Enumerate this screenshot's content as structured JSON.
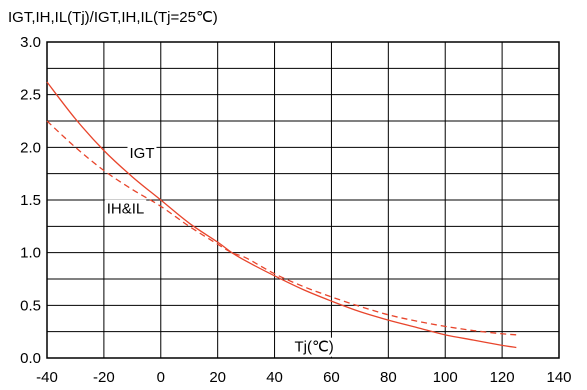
{
  "chart_data": {
    "type": "line",
    "title": "",
    "ylabel": "IGT,IH,IL(Tj)/IGT,IH,IL(Tj=25℃)",
    "xlabel": "",
    "xlim": [
      -40,
      140
    ],
    "ylim": [
      0.0,
      3.0
    ],
    "x_ticks": [
      "-40",
      "-20",
      "0",
      "20",
      "40",
      "60",
      "80",
      "100",
      "120",
      "140"
    ],
    "y_ticks": [
      "0.0",
      "0.5",
      "1.0",
      "1.5",
      "2.0",
      "2.5",
      "3.0"
    ],
    "grid": true,
    "line_color": "#e8452c",
    "series": [
      {
        "name": "IGT",
        "style": "solid",
        "x": [
          -40,
          -30,
          -20,
          -10,
          0,
          10,
          20,
          25,
          30,
          40,
          50,
          60,
          70,
          80,
          90,
          100,
          110,
          120,
          125
        ],
        "y": [
          2.62,
          2.27,
          1.97,
          1.72,
          1.5,
          1.28,
          1.1,
          1.0,
          0.92,
          0.78,
          0.65,
          0.54,
          0.44,
          0.36,
          0.29,
          0.22,
          0.17,
          0.12,
          0.1
        ]
      },
      {
        "name": "IH&IL",
        "style": "dashed",
        "x": [
          -40,
          -30,
          -20,
          -10,
          0,
          10,
          20,
          25,
          30,
          40,
          50,
          60,
          70,
          80,
          90,
          100,
          110,
          120,
          125
        ],
        "y": [
          2.25,
          2.0,
          1.78,
          1.6,
          1.44,
          1.25,
          1.08,
          1.0,
          0.95,
          0.8,
          0.68,
          0.58,
          0.49,
          0.41,
          0.35,
          0.3,
          0.26,
          0.23,
          0.22
        ]
      }
    ],
    "annotations": {
      "igt": "IGT",
      "ihil": "IH&IL",
      "tj": "Tj(℃)"
    }
  }
}
